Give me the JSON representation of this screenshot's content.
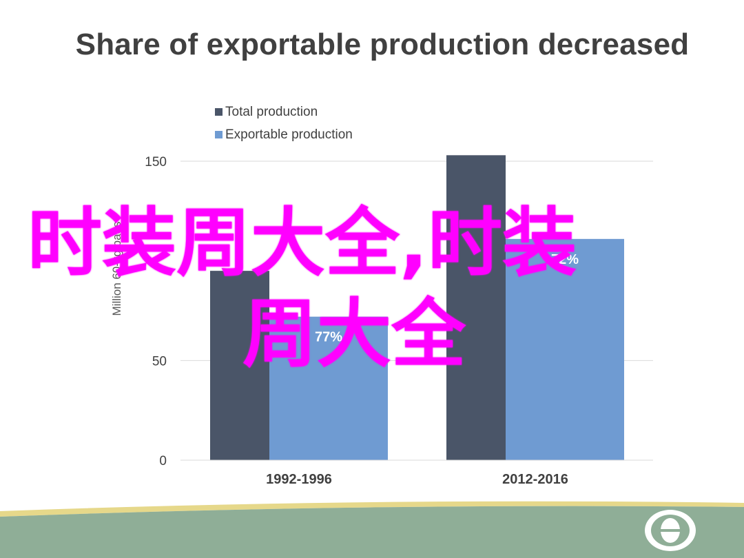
{
  "title": "Share of exportable production decreased",
  "overlay": {
    "line1": "时装周大全,时装",
    "line2": "周大全"
  },
  "colors": {
    "total": "#4a5568",
    "exportable": "#6f9bd2",
    "title": "#404040",
    "overlay": "#ff00ff",
    "footer_green": "#8fae97",
    "footer_yellow": "#e6d88a"
  },
  "chart_data": {
    "type": "bar",
    "categories": [
      "1992-1996",
      "2012-2016"
    ],
    "series": [
      {
        "name": "Total production",
        "values": [
          95,
          153
        ]
      },
      {
        "name": "Exportable production",
        "values": [
          72,
          111
        ],
        "labels": [
          "77%",
          "72%"
        ]
      }
    ],
    "ylabel": "Million 60-kg bags",
    "yticks": [
      0,
      50,
      150
    ],
    "ylim": [
      0,
      150
    ],
    "grid": true,
    "legend": "top-left"
  }
}
